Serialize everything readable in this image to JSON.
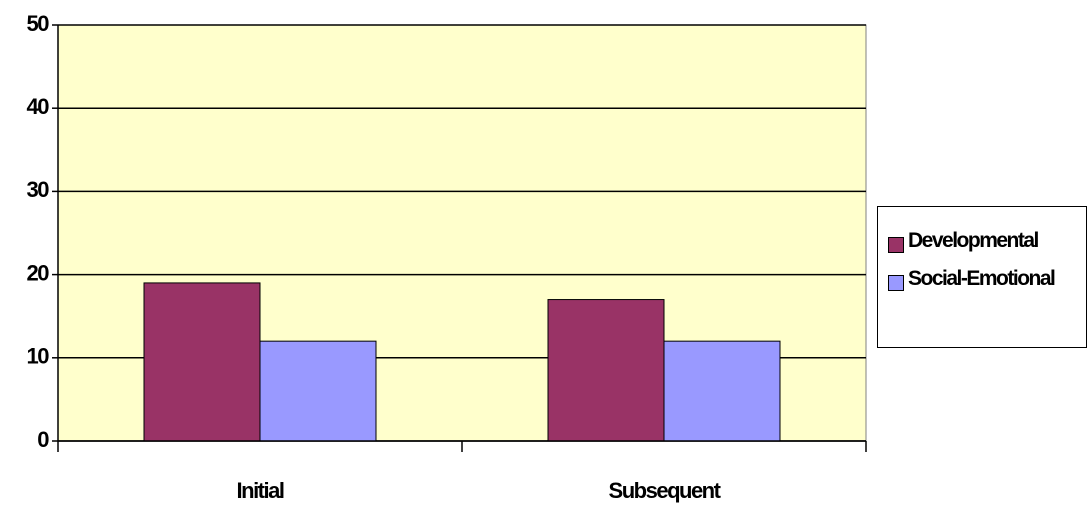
{
  "chart_data": {
    "type": "bar",
    "categories": [
      "Initial",
      "Subsequent"
    ],
    "series": [
      {
        "name": "Developmental",
        "color": "#993366",
        "values": [
          19,
          17
        ]
      },
      {
        "name": "Social-Emotional",
        "color": "#9999ff",
        "values": [
          12,
          12
        ]
      }
    ],
    "ylim": [
      0,
      50
    ],
    "yticks": [
      0,
      10,
      20,
      30,
      40,
      50
    ],
    "grid": true,
    "plot_background": "#ffffcc",
    "legend": "right"
  }
}
